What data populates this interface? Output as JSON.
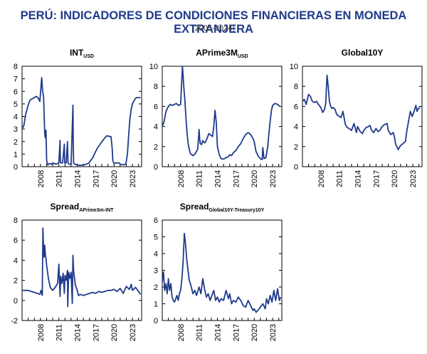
{
  "header": {
    "title": "PERÚ: INDICADORES DE CONDICIONES FINANCIERAS EN MONEDA EXTRANJERA",
    "subtitle": "(2005-2024)"
  },
  "colors": {
    "line": "#1f3a8a",
    "title": "#1f3a8a",
    "axis": "#000000"
  },
  "chart_data": [
    {
      "type": "line",
      "title": "INT",
      "title_sub": "USD",
      "xlim": [
        2005,
        2024.5
      ],
      "xticks": [
        "2008",
        "2011",
        "2014",
        "2017",
        "2020",
        "2023"
      ],
      "ylim": [
        0,
        8
      ],
      "yticks": [
        "0",
        "1",
        "2",
        "3",
        "4",
        "5",
        "6",
        "7",
        "8"
      ],
      "x": [
        2005.0,
        2005.3,
        2005.6,
        2006.0,
        2006.3,
        2006.6,
        2007.0,
        2007.3,
        2007.6,
        2007.9,
        2008.2,
        2008.35,
        2008.5,
        2008.7,
        2008.8,
        2008.9,
        2009.0,
        2009.1,
        2009.2,
        2009.4,
        2009.8,
        2010.0,
        2010.5,
        2011.0,
        2011.2,
        2011.25,
        2011.3,
        2011.6,
        2011.9,
        2011.95,
        2012.0,
        2012.2,
        2012.4,
        2012.45,
        2012.5,
        2012.7,
        2013.0,
        2013.3,
        2013.35,
        2013.4,
        2013.6,
        2014.0,
        2014.5,
        2015.0,
        2015.5,
        2015.9,
        2016.2,
        2016.5,
        2016.8,
        2017.0,
        2017.3,
        2017.6,
        2017.9,
        2018.2,
        2018.5,
        2018.8,
        2019.0,
        2019.3,
        2019.5,
        2019.7,
        2019.8,
        2020.0,
        2020.3,
        2020.8,
        2021.0,
        2021.5,
        2021.9,
        2022.0,
        2022.2,
        2022.4,
        2022.6,
        2022.8,
        2023.0,
        2023.3,
        2023.6,
        2024.0,
        2024.3
      ],
      "y": [
        3.0,
        3.3,
        4.2,
        4.9,
        5.3,
        5.4,
        5.5,
        5.6,
        5.5,
        5.2,
        7.1,
        6.0,
        5.6,
        2.6,
        2.3,
        2.9,
        0.6,
        0.2,
        0.15,
        0.25,
        0.2,
        0.3,
        0.2,
        0.3,
        2.1,
        0.5,
        0.3,
        0.3,
        1.8,
        0.3,
        0.3,
        0.3,
        2.0,
        1.0,
        0.3,
        0.2,
        0.2,
        4.9,
        2.0,
        0.3,
        0.2,
        0.15,
        0.1,
        0.15,
        0.2,
        0.3,
        0.5,
        0.7,
        1.0,
        1.2,
        1.5,
        1.7,
        1.9,
        2.1,
        2.3,
        2.45,
        2.45,
        2.4,
        2.4,
        1.5,
        0.5,
        0.25,
        0.3,
        0.3,
        0.2,
        0.15,
        0.2,
        0.4,
        1.1,
        2.6,
        3.8,
        4.6,
        5.0,
        5.3,
        5.5,
        5.5,
        5.5
      ]
    },
    {
      "type": "line",
      "title": "APrime3M",
      "title_sub": "USD",
      "xlim": [
        2005,
        2024.5
      ],
      "xticks": [
        "2008",
        "2011",
        "2014",
        "2017",
        "2020",
        "2023"
      ],
      "ylim": [
        0,
        10
      ],
      "yticks": [
        "0",
        "2",
        "4",
        "6",
        "8",
        "10"
      ],
      "x": [
        2005.0,
        2005.3,
        2005.6,
        2006.0,
        2006.3,
        2006.6,
        2007.0,
        2007.3,
        2007.6,
        2008.0,
        2008.3,
        2008.5,
        2008.7,
        2008.9,
        2009.1,
        2009.3,
        2009.6,
        2010.0,
        2010.4,
        2010.8,
        2011.0,
        2011.1,
        2011.2,
        2011.4,
        2011.6,
        2011.8,
        2012.0,
        2012.3,
        2012.6,
        2013.0,
        2013.2,
        2013.4,
        2013.6,
        2013.8,
        2014.0,
        2014.3,
        2014.6,
        2015.0,
        2015.4,
        2015.8,
        2016.0,
        2016.3,
        2016.6,
        2017.0,
        2017.4,
        2017.8,
        2018.2,
        2018.6,
        2019.0,
        2019.4,
        2019.8,
        2020.0,
        2020.3,
        2020.7,
        2021.0,
        2021.3,
        2021.4,
        2021.6,
        2021.9,
        2022.2,
        2022.5,
        2022.8,
        2023.0,
        2023.4,
        2023.8,
        2024.2
      ],
      "y": [
        4.0,
        4.5,
        5.5,
        6.0,
        6.2,
        6.1,
        6.2,
        6.3,
        6.1,
        6.2,
        10.0,
        8.0,
        6.5,
        4.5,
        3.0,
        2.0,
        1.3,
        1.1,
        1.3,
        1.8,
        3.7,
        2.8,
        2.3,
        2.2,
        2.6,
        2.4,
        2.4,
        2.8,
        3.3,
        3.1,
        3.0,
        4.0,
        5.6,
        4.5,
        2.0,
        1.2,
        0.8,
        0.75,
        0.9,
        1.0,
        1.2,
        1.1,
        1.4,
        1.6,
        2.0,
        2.3,
        2.8,
        3.2,
        3.4,
        3.2,
        2.8,
        2.5,
        1.5,
        1.0,
        0.8,
        0.7,
        1.9,
        0.8,
        0.9,
        2.0,
        4.0,
        5.6,
        6.1,
        6.3,
        6.2,
        6.0
      ]
    },
    {
      "type": "line",
      "title": "Global10Y",
      "xlim": [
        2005,
        2024.5
      ],
      "xticks": [
        "2008",
        "2011",
        "2014",
        "2017",
        "2020",
        "2023"
      ],
      "ylim": [
        0,
        10
      ],
      "yticks": [
        "0",
        "2",
        "4",
        "6",
        "8",
        "10"
      ],
      "x": [
        2005.0,
        2005.3,
        2005.6,
        2006.0,
        2006.3,
        2006.6,
        2007.0,
        2007.3,
        2007.6,
        2008.0,
        2008.3,
        2008.6,
        2008.8,
        2009.0,
        2009.2,
        2009.4,
        2009.6,
        2009.8,
        2010.0,
        2010.3,
        2010.6,
        2011.0,
        2011.3,
        2011.6,
        2012.0,
        2012.3,
        2012.6,
        2013.0,
        2013.4,
        2013.8,
        2014.0,
        2014.4,
        2014.8,
        2015.0,
        2015.4,
        2015.8,
        2016.0,
        2016.3,
        2016.6,
        2017.0,
        2017.3,
        2017.6,
        2018.0,
        2018.4,
        2018.8,
        2019.0,
        2019.4,
        2019.8,
        2020.0,
        2020.2,
        2020.4,
        2020.6,
        2021.0,
        2021.4,
        2021.8,
        2022.0,
        2022.3,
        2022.6,
        2022.9,
        2023.2,
        2023.5,
        2023.7,
        2023.9,
        2024.2
      ],
      "y": [
        6.5,
        6.7,
        6.2,
        7.2,
        7.0,
        6.5,
        6.4,
        6.5,
        6.2,
        5.9,
        5.4,
        5.7,
        6.3,
        9.1,
        8.0,
        6.5,
        6.0,
        5.8,
        5.9,
        5.7,
        5.2,
        5.0,
        4.9,
        5.5,
        4.2,
        3.9,
        3.8,
        3.6,
        4.3,
        3.4,
        4.0,
        3.5,
        3.3,
        3.6,
        3.9,
        4.0,
        4.1,
        3.6,
        3.4,
        3.8,
        3.5,
        3.6,
        4.0,
        4.2,
        4.3,
        3.6,
        3.2,
        3.4,
        3.0,
        2.2,
        2.0,
        1.7,
        2.1,
        2.3,
        2.5,
        3.5,
        4.5,
        5.5,
        5.0,
        5.5,
        6.1,
        5.5,
        5.8,
        5.9
      ]
    },
    {
      "type": "line",
      "title": "Spread",
      "title_sub": "APrime3m-INT",
      "xlim": [
        2005,
        2024.5
      ],
      "xticks": [
        "2008",
        "2011",
        "2014",
        "2017",
        "2020",
        "2023"
      ],
      "ylim": [
        -2,
        8
      ],
      "yticks": [
        "-2",
        "0",
        "2",
        "4",
        "6",
        "8"
      ],
      "x": [
        2005.0,
        2005.5,
        2006.0,
        2006.5,
        2007.0,
        2007.5,
        2007.9,
        2008.1,
        2008.3,
        2008.4,
        2008.5,
        2008.6,
        2008.7,
        2008.8,
        2008.9,
        2009.0,
        2009.3,
        2009.6,
        2010.0,
        2010.4,
        2010.8,
        2011.0,
        2011.2,
        2011.3,
        2011.5,
        2011.7,
        2011.9,
        2012.0,
        2012.2,
        2012.4,
        2012.45,
        2012.6,
        2012.8,
        2013.0,
        2013.2,
        2013.3,
        2013.4,
        2013.5,
        2013.7,
        2014.0,
        2014.2,
        2014.5,
        2015.0,
        2015.5,
        2016.0,
        2016.5,
        2017.0,
        2017.5,
        2018.0,
        2018.5,
        2019.0,
        2019.5,
        2020.0,
        2020.5,
        2021.0,
        2021.5,
        2022.0,
        2022.5,
        2022.8,
        2023.0,
        2023.5,
        2024.0,
        2024.3
      ],
      "y": [
        1.0,
        1.0,
        1.0,
        0.9,
        0.8,
        0.7,
        0.6,
        1.0,
        0.5,
        7.2,
        5.0,
        4.3,
        5.5,
        4.6,
        4.2,
        3.5,
        2.2,
        1.3,
        1.0,
        1.3,
        1.7,
        3.6,
        0.4,
        2.4,
        1.7,
        2.7,
        0.7,
        2.5,
        2.0,
        3.0,
        -0.6,
        2.8,
        2.2,
        2.8,
        -0.3,
        4.5,
        3.0,
        2.5,
        1.5,
        1.0,
        0.5,
        0.6,
        0.5,
        0.6,
        0.7,
        0.8,
        0.7,
        0.9,
        0.8,
        0.9,
        1.0,
        1.0,
        1.1,
        0.9,
        1.2,
        0.7,
        1.4,
        1.1,
        1.6,
        1.0,
        1.3,
        0.9,
        0.6
      ]
    },
    {
      "type": "line",
      "title": "Spread",
      "title_sub": "Global10Y-Treasury10Y",
      "xlim": [
        2005,
        2024.5
      ],
      "xticks": [
        "2008",
        "2011",
        "2014",
        "2017",
        "2020",
        "2023"
      ],
      "ylim": [
        0,
        6
      ],
      "yticks": [
        "0",
        "1",
        "2",
        "3",
        "4",
        "5",
        "6"
      ],
      "x": [
        2005.0,
        2005.2,
        2005.4,
        2005.6,
        2005.8,
        2006.0,
        2006.2,
        2006.4,
        2006.6,
        2006.8,
        2007.0,
        2007.2,
        2007.4,
        2007.6,
        2007.8,
        2008.0,
        2008.2,
        2008.4,
        2008.6,
        2008.8,
        2009.0,
        2009.2,
        2009.4,
        2009.6,
        2009.8,
        2010.0,
        2010.3,
        2010.6,
        2011.0,
        2011.3,
        2011.6,
        2011.9,
        2012.2,
        2012.5,
        2012.8,
        2013.1,
        2013.4,
        2013.7,
        2014.0,
        2014.3,
        2014.6,
        2015.0,
        2015.4,
        2015.8,
        2016.0,
        2016.3,
        2016.6,
        2017.0,
        2017.4,
        2017.8,
        2018.2,
        2018.6,
        2019.0,
        2019.4,
        2019.8,
        2020.0,
        2020.3,
        2020.6,
        2021.0,
        2021.4,
        2021.8,
        2022.0,
        2022.3,
        2022.6,
        2022.9,
        2023.2,
        2023.5,
        2023.8,
        2024.1,
        2024.3
      ],
      "y": [
        2.3,
        2.9,
        1.8,
        2.2,
        1.6,
        2.5,
        1.8,
        2.2,
        1.4,
        1.2,
        1.1,
        1.3,
        1.5,
        1.2,
        1.6,
        1.8,
        2.5,
        3.5,
        5.2,
        4.6,
        3.6,
        3.0,
        2.4,
        2.2,
        1.9,
        1.6,
        1.8,
        1.5,
        2.0,
        1.6,
        2.5,
        1.9,
        1.4,
        1.6,
        1.2,
        1.5,
        1.8,
        1.2,
        1.4,
        1.1,
        1.3,
        1.2,
        1.8,
        1.3,
        1.6,
        1.0,
        1.2,
        1.1,
        1.4,
        1.2,
        0.9,
        0.8,
        1.2,
        0.9,
        0.6,
        0.7,
        0.5,
        0.6,
        0.8,
        1.0,
        0.7,
        1.3,
        1.0,
        1.5,
        1.1,
        1.8,
        1.2,
        1.9,
        1.2,
        1.4
      ]
    }
  ]
}
